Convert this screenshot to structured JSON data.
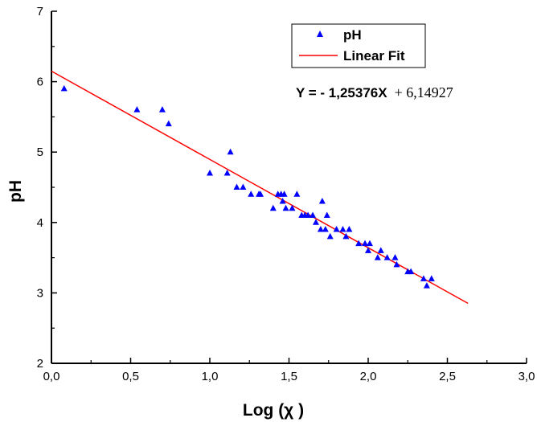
{
  "chart_data": {
    "type": "scatter",
    "xlabel": "Log (χ )",
    "ylabel": "pH",
    "xlim": [
      0.0,
      3.0
    ],
    "ylim": [
      2,
      7
    ],
    "x_ticks": [
      "0,0",
      "0,5",
      "1,0",
      "1,5",
      "2,0",
      "2,5",
      "3,0"
    ],
    "y_ticks": [
      "2",
      "3",
      "4",
      "5",
      "6",
      "7"
    ],
    "grid": false,
    "legend_position": "top-right",
    "series": [
      {
        "name": "pH",
        "marker": "triangle",
        "color": "#0000ff",
        "points": [
          [
            0.08,
            5.9
          ],
          [
            0.54,
            5.6
          ],
          [
            0.7,
            5.6
          ],
          [
            0.74,
            5.4
          ],
          [
            1.0,
            4.7
          ],
          [
            1.11,
            4.7
          ],
          [
            1.13,
            5.0
          ],
          [
            1.17,
            4.5
          ],
          [
            1.21,
            4.5
          ],
          [
            1.26,
            4.4
          ],
          [
            1.31,
            4.4
          ],
          [
            1.32,
            4.4
          ],
          [
            1.4,
            4.2
          ],
          [
            1.43,
            4.4
          ],
          [
            1.45,
            4.4
          ],
          [
            1.46,
            4.3
          ],
          [
            1.47,
            4.4
          ],
          [
            1.48,
            4.2
          ],
          [
            1.52,
            4.2
          ],
          [
            1.55,
            4.4
          ],
          [
            1.58,
            4.1
          ],
          [
            1.6,
            4.1
          ],
          [
            1.62,
            4.1
          ],
          [
            1.65,
            4.1
          ],
          [
            1.67,
            4.0
          ],
          [
            1.7,
            3.9
          ],
          [
            1.71,
            4.3
          ],
          [
            1.73,
            3.9
          ],
          [
            1.74,
            4.1
          ],
          [
            1.76,
            3.8
          ],
          [
            1.8,
            3.9
          ],
          [
            1.84,
            3.9
          ],
          [
            1.86,
            3.8
          ],
          [
            1.88,
            3.9
          ],
          [
            1.94,
            3.7
          ],
          [
            1.98,
            3.7
          ],
          [
            2.0,
            3.6
          ],
          [
            2.01,
            3.7
          ],
          [
            2.06,
            3.5
          ],
          [
            2.08,
            3.6
          ],
          [
            2.12,
            3.5
          ],
          [
            2.17,
            3.5
          ],
          [
            2.18,
            3.4
          ],
          [
            2.25,
            3.3
          ],
          [
            2.27,
            3.3
          ],
          [
            2.35,
            3.2
          ],
          [
            2.37,
            3.1
          ],
          [
            2.4,
            3.2
          ]
        ]
      },
      {
        "name": "Linear Fit",
        "type": "line",
        "color": "#ff0000",
        "slope": -1.25376,
        "intercept": 6.14927,
        "x_range": [
          0.0,
          2.63
        ]
      }
    ],
    "annotations": {
      "equation_bold": "Y = - 1,25376X",
      "equation_rest": "+ 6,14927"
    }
  }
}
